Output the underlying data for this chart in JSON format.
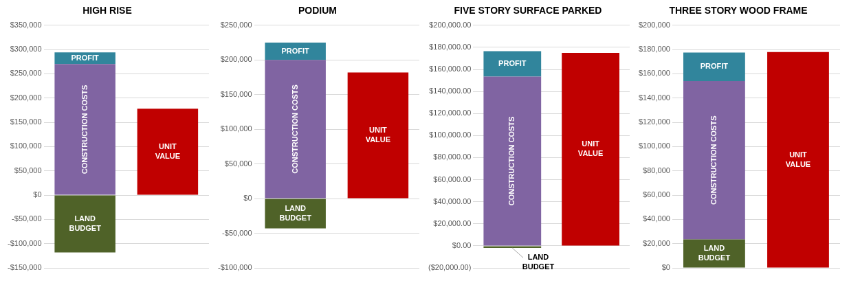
{
  "chart_data": [
    {
      "type": "bar",
      "title": "HIGH RISE",
      "categories": [
        null,
        null
      ],
      "stacked": true,
      "grid": "y",
      "tick_labels": "y",
      "ylim": [
        -150000,
        350000
      ],
      "yticks": [
        {
          "value": -150000,
          "label": "-$150,000"
        },
        {
          "value": -100000,
          "label": "-$100,000"
        },
        {
          "value": -50000,
          "label": "-$50,000"
        },
        {
          "value": 0,
          "label": "$0"
        },
        {
          "value": 50000,
          "label": "$50,000"
        },
        {
          "value": 100000,
          "label": "$100,000"
        },
        {
          "value": 150000,
          "label": "$150,000"
        },
        {
          "value": 200000,
          "label": "$200,000"
        },
        {
          "value": 250000,
          "label": "$250,000"
        },
        {
          "value": 300000,
          "label": "$300,000"
        },
        {
          "value": 350000,
          "label": "$350,000"
        }
      ],
      "series": [
        {
          "name": "LAND BUDGET",
          "color": "#4f6228",
          "values": [
            -118000,
            null
          ]
        },
        {
          "name": "CONSTRUCTION COSTS",
          "color": "#8064a2",
          "values": [
            270000,
            null
          ]
        },
        {
          "name": "PROFIT",
          "color": "#31859c",
          "values": [
            24000,
            null
          ]
        },
        {
          "name": "UNIT VALUE",
          "color": "#c00000",
          "values": [
            null,
            178000
          ]
        }
      ]
    },
    {
      "type": "bar",
      "title": "PODIUM",
      "categories": [
        null,
        null
      ],
      "stacked": true,
      "grid": "y",
      "tick_labels": "y",
      "ylim": [
        -100000,
        250000
      ],
      "yticks": [
        {
          "value": -100000,
          "label": "-$100,000"
        },
        {
          "value": -50000,
          "label": "-$50,000"
        },
        {
          "value": 0,
          "label": "$0"
        },
        {
          "value": 50000,
          "label": "$50,000"
        },
        {
          "value": 100000,
          "label": "$100,000"
        },
        {
          "value": 150000,
          "label": "$150,000"
        },
        {
          "value": 200000,
          "label": "$200,000"
        },
        {
          "value": 250000,
          "label": "$250,000"
        }
      ],
      "series": [
        {
          "name": "LAND BUDGET",
          "color": "#4f6228",
          "values": [
            -43000,
            null
          ]
        },
        {
          "name": "CONSTRUCTION COSTS",
          "color": "#8064a2",
          "values": [
            200000,
            null
          ]
        },
        {
          "name": "PROFIT",
          "color": "#31859c",
          "values": [
            25000,
            null
          ]
        },
        {
          "name": "UNIT VALUE",
          "color": "#c00000",
          "values": [
            null,
            182000
          ]
        }
      ]
    },
    {
      "type": "bar",
      "title": "FIVE STORY SURFACE PARKED",
      "categories": [
        null,
        null
      ],
      "stacked": true,
      "grid": "y",
      "tick_labels": "y",
      "ylim": [
        -20000,
        200000
      ],
      "yticks": [
        {
          "value": -20000,
          "label": "($20,000.00)"
        },
        {
          "value": 0,
          "label": "$0.00"
        },
        {
          "value": 20000,
          "label": "$20,000.00"
        },
        {
          "value": 40000,
          "label": "$40,000.00"
        },
        {
          "value": 60000,
          "label": "$60,000.00"
        },
        {
          "value": 80000,
          "label": "$80,000.00"
        },
        {
          "value": 100000,
          "label": "$100,000.00"
        },
        {
          "value": 120000,
          "label": "$120,000.00"
        },
        {
          "value": 140000,
          "label": "$140,000.00"
        },
        {
          "value": 160000,
          "label": "$160,000.00"
        },
        {
          "value": 180000,
          "label": "$180,000.00"
        },
        {
          "value": 200000,
          "label": "$200,000.00"
        }
      ],
      "series": [
        {
          "name": "LAND BUDGET",
          "color": "#4f6228",
          "values": [
            -2000,
            null
          ]
        },
        {
          "name": "CONSTRUCTION COSTS",
          "color": "#8064a2",
          "values": [
            153500,
            null
          ]
        },
        {
          "name": "PROFIT",
          "color": "#31859c",
          "values": [
            23000,
            null
          ]
        },
        {
          "name": "UNIT VALUE",
          "color": "#c00000",
          "values": [
            null,
            175000
          ]
        }
      ]
    },
    {
      "type": "bar",
      "title": "THREE STORY WOOD FRAME",
      "categories": [
        null,
        null
      ],
      "stacked": true,
      "grid": "y",
      "tick_labels": "y",
      "ylim": [
        0,
        200000
      ],
      "yticks": [
        {
          "value": 0,
          "label": "$0"
        },
        {
          "value": 20000,
          "label": "$20,000"
        },
        {
          "value": 40000,
          "label": "$40,000"
        },
        {
          "value": 60000,
          "label": "$60,000"
        },
        {
          "value": 80000,
          "label": "$80,000"
        },
        {
          "value": 100000,
          "label": "$100,000"
        },
        {
          "value": 120000,
          "label": "$120,000"
        },
        {
          "value": 140000,
          "label": "$140,000"
        },
        {
          "value": 160000,
          "label": "$160,000"
        },
        {
          "value": 180000,
          "label": "$180,000"
        },
        {
          "value": 200000,
          "label": "$200,000"
        }
      ],
      "series": [
        {
          "name": "LAND BUDGET",
          "color": "#4f6228",
          "values": [
            23500,
            null
          ]
        },
        {
          "name": "CONSTRUCTION COSTS",
          "color": "#8064a2",
          "values": [
            130500,
            null
          ]
        },
        {
          "name": "PROFIT",
          "color": "#31859c",
          "values": [
            23500,
            null
          ]
        },
        {
          "name": "UNIT VALUE",
          "color": "#c00000",
          "values": [
            null,
            178000
          ]
        }
      ]
    }
  ]
}
